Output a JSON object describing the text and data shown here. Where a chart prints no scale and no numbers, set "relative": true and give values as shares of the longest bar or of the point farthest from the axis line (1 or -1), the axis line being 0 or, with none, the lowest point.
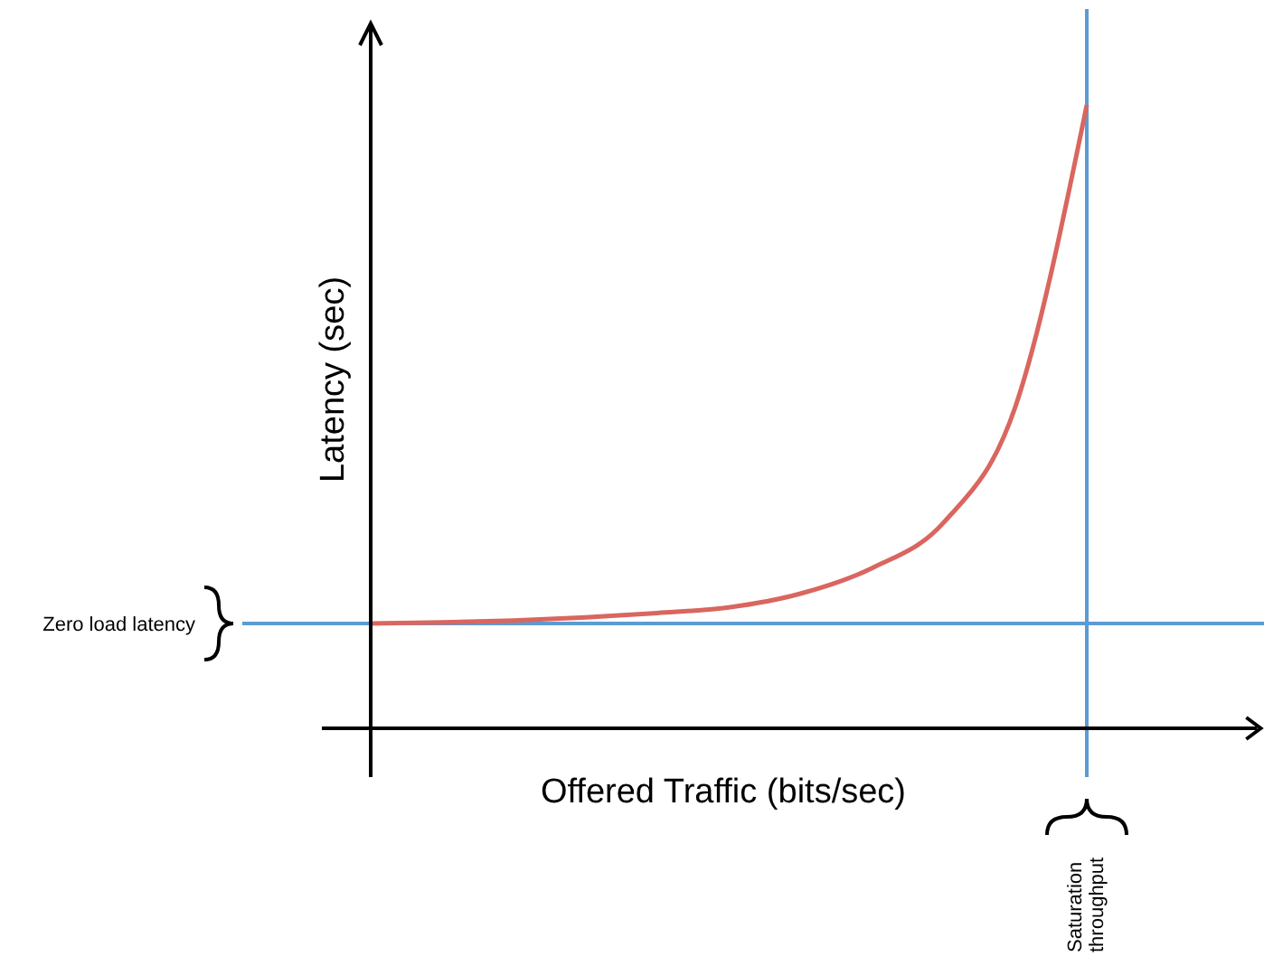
{
  "chart_data": {
    "type": "line",
    "relative": true,
    "xlabel": "Offered Traffic (bits/sec)",
    "ylabel": "Latency (sec)",
    "categories": [
      null,
      null,
      null,
      null,
      null,
      null,
      null,
      null,
      null,
      null,
      null,
      null,
      null
    ],
    "series": [
      {
        "color": "#d9665f",
        "values": [
          0.168,
          0.17,
          0.173,
          0.178,
          0.185,
          0.194,
          0.216,
          0.257,
          0.33,
          0.515,
          1,
          null,
          null
        ]
      }
    ],
    "ref_lines": [
      {
        "axis": "y",
        "value": 0.168,
        "label": "Zero load latency",
        "color": "#5b9bd5"
      },
      {
        "axis": "x",
        "label": "Saturation throughput",
        "color": "#5b9bd5"
      }
    ],
    "marker": "none",
    "line_style": "solid"
  }
}
